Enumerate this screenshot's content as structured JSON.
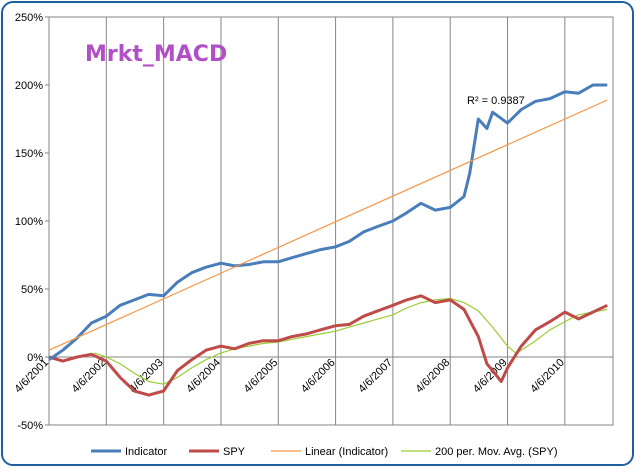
{
  "chart_data": {
    "type": "line",
    "title": "Mrkt_MACD",
    "xlabel": "",
    "ylabel": "",
    "ylim": [
      -50,
      250
    ],
    "y_ticks": [
      -50,
      0,
      50,
      100,
      150,
      200,
      250
    ],
    "y_tick_labels": [
      "-50%",
      "0%",
      "50%",
      "100%",
      "150%",
      "200%",
      "250%"
    ],
    "x_range": [
      2001.26,
      2011.1
    ],
    "x_ticks": [
      2001.26,
      2002.26,
      2003.26,
      2004.26,
      2005.26,
      2006.26,
      2007.26,
      2008.26,
      2009.26,
      2010.26
    ],
    "x_tick_labels": [
      "4/6/2001",
      "4/6/2002",
      "4/6/2003",
      "4/6/2004",
      "4/6/2005",
      "4/6/2006",
      "4/6/2007",
      "4/6/2008",
      "4/6/2009",
      "4/6/2010"
    ],
    "grid": "vertical",
    "annotation": "R² = 0.9387",
    "legend_position": "bottom",
    "series": [
      {
        "name": "Indicator",
        "color": "#4a7ebb",
        "points": [
          [
            2001.26,
            -2
          ],
          [
            2001.5,
            5
          ],
          [
            2001.75,
            14
          ],
          [
            2002.0,
            25
          ],
          [
            2002.26,
            30
          ],
          [
            2002.5,
            38
          ],
          [
            2002.75,
            42
          ],
          [
            2003.0,
            46
          ],
          [
            2003.26,
            45
          ],
          [
            2003.5,
            55
          ],
          [
            2003.75,
            62
          ],
          [
            2004.0,
            66
          ],
          [
            2004.26,
            69
          ],
          [
            2004.5,
            67
          ],
          [
            2004.75,
            68
          ],
          [
            2005.0,
            70
          ],
          [
            2005.26,
            70
          ],
          [
            2005.5,
            73
          ],
          [
            2005.75,
            76
          ],
          [
            2006.0,
            79
          ],
          [
            2006.26,
            81
          ],
          [
            2006.5,
            85
          ],
          [
            2006.75,
            92
          ],
          [
            2007.0,
            96
          ],
          [
            2007.26,
            100
          ],
          [
            2007.5,
            106
          ],
          [
            2007.75,
            113
          ],
          [
            2008.0,
            108
          ],
          [
            2008.26,
            110
          ],
          [
            2008.5,
            118
          ],
          [
            2008.6,
            135
          ],
          [
            2008.75,
            175
          ],
          [
            2008.9,
            168
          ],
          [
            2009.0,
            180
          ],
          [
            2009.26,
            172
          ],
          [
            2009.5,
            182
          ],
          [
            2009.75,
            188
          ],
          [
            2010.0,
            190
          ],
          [
            2010.26,
            195
          ],
          [
            2010.5,
            194
          ],
          [
            2010.75,
            200
          ],
          [
            2011.0,
            200
          ]
        ]
      },
      {
        "name": "SPY",
        "color": "#be4b48",
        "points": [
          [
            2001.26,
            0
          ],
          [
            2001.5,
            -3
          ],
          [
            2001.75,
            0
          ],
          [
            2002.0,
            2
          ],
          [
            2002.26,
            -3
          ],
          [
            2002.5,
            -15
          ],
          [
            2002.75,
            -25
          ],
          [
            2003.0,
            -28
          ],
          [
            2003.26,
            -25
          ],
          [
            2003.5,
            -10
          ],
          [
            2003.75,
            -2
          ],
          [
            2004.0,
            5
          ],
          [
            2004.26,
            8
          ],
          [
            2004.5,
            6
          ],
          [
            2004.75,
            10
          ],
          [
            2005.0,
            12
          ],
          [
            2005.26,
            12
          ],
          [
            2005.5,
            15
          ],
          [
            2005.75,
            17
          ],
          [
            2006.0,
            20
          ],
          [
            2006.26,
            23
          ],
          [
            2006.5,
            24
          ],
          [
            2006.75,
            30
          ],
          [
            2007.0,
            34
          ],
          [
            2007.26,
            38
          ],
          [
            2007.5,
            42
          ],
          [
            2007.75,
            45
          ],
          [
            2008.0,
            40
          ],
          [
            2008.26,
            42
          ],
          [
            2008.5,
            35
          ],
          [
            2008.75,
            15
          ],
          [
            2008.9,
            -5
          ],
          [
            2009.0,
            -10
          ],
          [
            2009.15,
            -18
          ],
          [
            2009.26,
            -8
          ],
          [
            2009.5,
            8
          ],
          [
            2009.75,
            20
          ],
          [
            2010.0,
            26
          ],
          [
            2010.26,
            33
          ],
          [
            2010.5,
            28
          ],
          [
            2010.75,
            33
          ],
          [
            2011.0,
            38
          ]
        ]
      },
      {
        "name": "Linear (Indicator)",
        "color": "#f79646",
        "points": [
          [
            2001.26,
            5
          ],
          [
            2011.0,
            189
          ]
        ]
      },
      {
        "name": "200 per. Mov. Avg. (SPY)",
        "color": "#9acd32",
        "points": [
          [
            2002.05,
            3
          ],
          [
            2002.26,
            0
          ],
          [
            2002.5,
            -5
          ],
          [
            2002.75,
            -12
          ],
          [
            2003.0,
            -18
          ],
          [
            2003.26,
            -20
          ],
          [
            2003.5,
            -15
          ],
          [
            2003.75,
            -8
          ],
          [
            2004.0,
            -2
          ],
          [
            2004.26,
            3
          ],
          [
            2004.5,
            6
          ],
          [
            2004.75,
            8
          ],
          [
            2005.0,
            10
          ],
          [
            2005.26,
            11
          ],
          [
            2005.5,
            13
          ],
          [
            2005.75,
            15
          ],
          [
            2006.0,
            17
          ],
          [
            2006.26,
            19
          ],
          [
            2006.5,
            22
          ],
          [
            2006.75,
            25
          ],
          [
            2007.0,
            28
          ],
          [
            2007.26,
            31
          ],
          [
            2007.5,
            36
          ],
          [
            2007.75,
            40
          ],
          [
            2008.0,
            42
          ],
          [
            2008.26,
            43
          ],
          [
            2008.5,
            40
          ],
          [
            2008.75,
            34
          ],
          [
            2009.0,
            22
          ],
          [
            2009.26,
            8
          ],
          [
            2009.4,
            3
          ],
          [
            2009.5,
            5
          ],
          [
            2009.75,
            12
          ],
          [
            2010.0,
            20
          ],
          [
            2010.26,
            26
          ],
          [
            2010.5,
            31
          ],
          [
            2010.75,
            33
          ],
          [
            2011.0,
            35
          ]
        ]
      }
    ]
  }
}
